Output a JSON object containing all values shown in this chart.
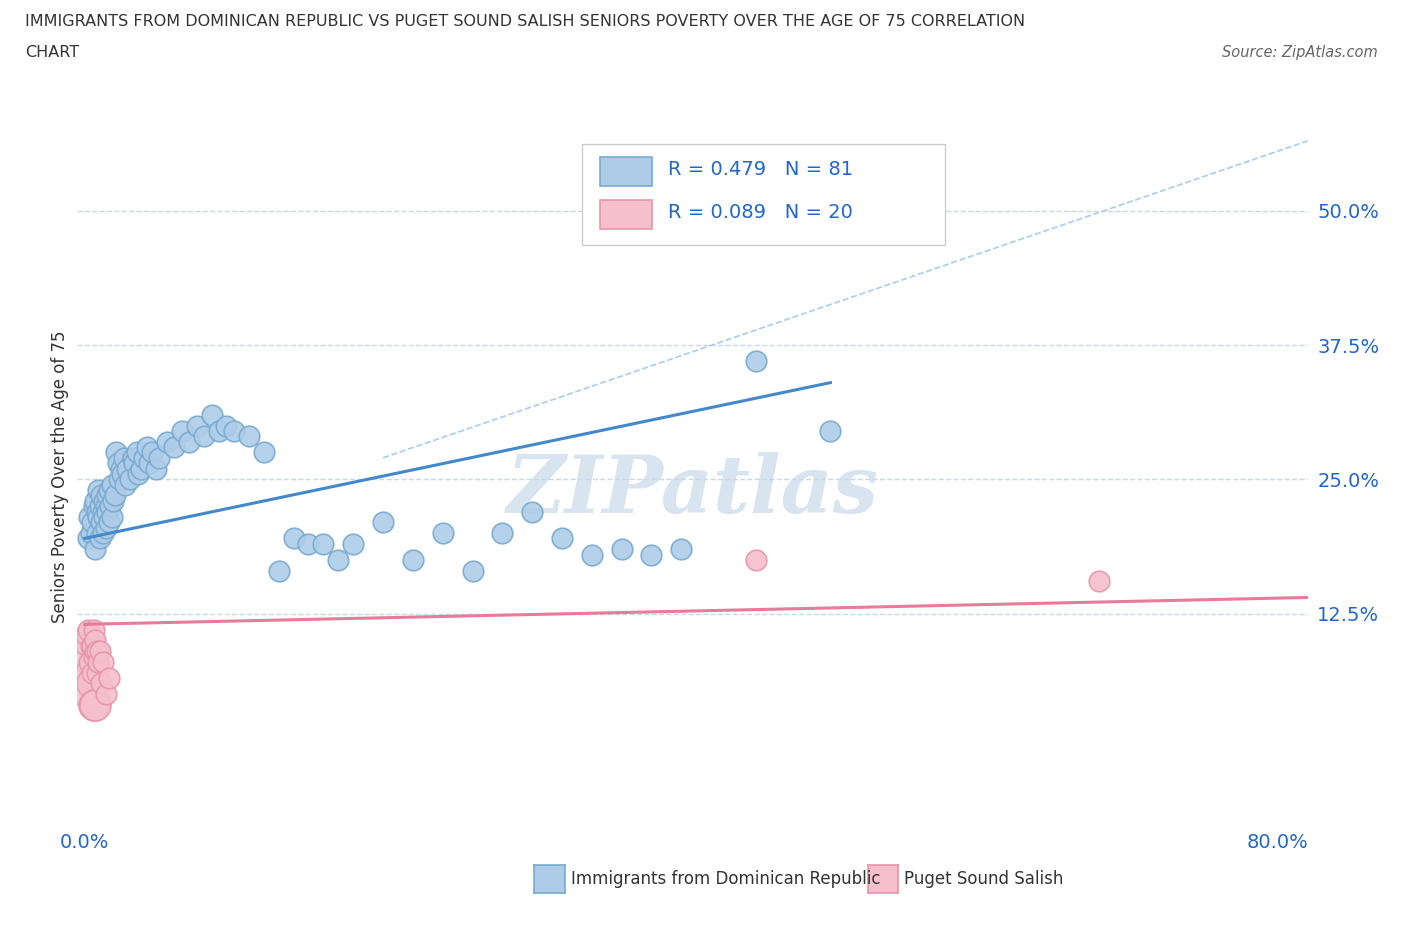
{
  "title_line1": "IMMIGRANTS FROM DOMINICAN REPUBLIC VS PUGET SOUND SALISH SENIORS POVERTY OVER THE AGE OF 75 CORRELATION",
  "title_line2": "CHART",
  "source_text": "Source: ZipAtlas.com",
  "ylabel": "Seniors Poverty Over the Age of 75",
  "xlim": [
    -0.005,
    0.82
  ],
  "ylim": [
    -0.07,
    0.575
  ],
  "ytick_labels_right": [
    "12.5%",
    "25.0%",
    "37.5%",
    "50.0%"
  ],
  "ytick_vals_right": [
    0.125,
    0.25,
    0.375,
    0.5
  ],
  "blue_R": 0.479,
  "blue_N": 81,
  "pink_R": 0.089,
  "pink_N": 20,
  "blue_color": "#aecce8",
  "blue_edge": "#78aad0",
  "pink_color": "#f5bfcc",
  "pink_edge": "#e895aa",
  "blue_line_color": "#4488cc",
  "pink_line_color": "#e87a9a",
  "ref_line_color": "#aaccee",
  "legend_R_color": "#2266cc",
  "background_color": "#ffffff",
  "grid_color": "#c8d8e8",
  "watermark_color": "#d8e4f0",
  "blue_scatter_x": [
    0.002,
    0.003,
    0.004,
    0.005,
    0.006,
    0.007,
    0.007,
    0.008,
    0.008,
    0.009,
    0.009,
    0.01,
    0.01,
    0.011,
    0.011,
    0.012,
    0.012,
    0.013,
    0.013,
    0.014,
    0.014,
    0.015,
    0.015,
    0.016,
    0.016,
    0.017,
    0.018,
    0.018,
    0.019,
    0.02,
    0.021,
    0.022,
    0.023,
    0.024,
    0.025,
    0.026,
    0.027,
    0.028,
    0.03,
    0.032,
    0.033,
    0.035,
    0.036,
    0.038,
    0.04,
    0.042,
    0.043,
    0.045,
    0.048,
    0.05,
    0.055,
    0.06,
    0.065,
    0.07,
    0.075,
    0.08,
    0.085,
    0.09,
    0.095,
    0.1,
    0.11,
    0.12,
    0.13,
    0.14,
    0.15,
    0.16,
    0.17,
    0.18,
    0.2,
    0.22,
    0.24,
    0.26,
    0.28,
    0.3,
    0.32,
    0.34,
    0.36,
    0.38,
    0.4,
    0.45,
    0.5
  ],
  "blue_scatter_y": [
    0.195,
    0.215,
    0.2,
    0.21,
    0.225,
    0.185,
    0.23,
    0.22,
    0.2,
    0.215,
    0.24,
    0.195,
    0.225,
    0.21,
    0.235,
    0.2,
    0.22,
    0.215,
    0.23,
    0.205,
    0.225,
    0.22,
    0.235,
    0.21,
    0.24,
    0.225,
    0.245,
    0.215,
    0.23,
    0.235,
    0.275,
    0.265,
    0.25,
    0.26,
    0.255,
    0.27,
    0.245,
    0.26,
    0.25,
    0.27,
    0.265,
    0.275,
    0.255,
    0.26,
    0.27,
    0.28,
    0.265,
    0.275,
    0.26,
    0.27,
    0.285,
    0.28,
    0.295,
    0.285,
    0.3,
    0.29,
    0.31,
    0.295,
    0.3,
    0.295,
    0.29,
    0.275,
    0.165,
    0.195,
    0.19,
    0.19,
    0.175,
    0.19,
    0.21,
    0.175,
    0.2,
    0.165,
    0.2,
    0.22,
    0.195,
    0.18,
    0.185,
    0.18,
    0.185,
    0.36,
    0.295
  ],
  "pink_scatter_x": [
    0.001,
    0.002,
    0.003,
    0.004,
    0.005,
    0.005,
    0.006,
    0.006,
    0.007,
    0.007,
    0.008,
    0.008,
    0.009,
    0.01,
    0.011,
    0.012,
    0.014,
    0.016,
    0.45,
    0.68
  ],
  "pink_scatter_y": [
    0.105,
    0.11,
    0.08,
    0.095,
    0.07,
    0.095,
    0.085,
    0.11,
    0.09,
    0.1,
    0.07,
    0.09,
    0.08,
    0.09,
    0.06,
    0.08,
    0.05,
    0.065,
    0.175,
    0.155
  ],
  "pink_scatter_large_x": [
    0.001,
    0.002,
    0.003,
    0.004,
    0.005,
    0.006,
    0.007
  ],
  "pink_scatter_large_y": [
    0.085,
    0.1,
    0.05,
    0.07,
    0.06,
    0.04,
    0.04
  ],
  "blue_trend_x": [
    0.0,
    0.5
  ],
  "blue_trend_y": [
    0.195,
    0.34
  ],
  "pink_trend_x": [
    0.0,
    0.82
  ],
  "pink_trend_y": [
    0.115,
    0.14
  ],
  "ref_line_x": [
    0.2,
    0.82
  ],
  "ref_line_y": [
    0.27,
    0.565
  ]
}
